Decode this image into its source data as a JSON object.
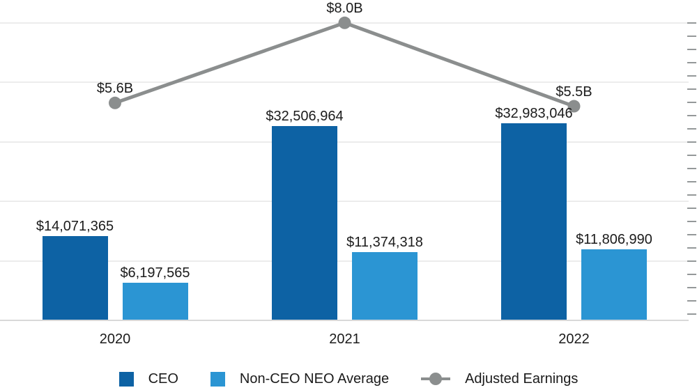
{
  "chart_data": {
    "type": "combo-bar-line",
    "categories": [
      "2020",
      "2021",
      "2022"
    ],
    "series": [
      {
        "name": "CEO",
        "type": "bar",
        "color": "#0D62A4",
        "values": [
          14071365,
          32506964,
          32983046
        ],
        "data_labels": [
          "$14,071,365",
          "$32,506,964",
          "$32,983,046"
        ]
      },
      {
        "name": "Non-CEO NEO Average",
        "type": "bar",
        "color": "#2B95D3",
        "values": [
          6197565,
          11374318,
          11806990
        ],
        "data_labels": [
          "$6,197,565",
          "$11,374,318",
          "$11,806,990"
        ]
      },
      {
        "name": "Adjusted Earnings",
        "type": "line",
        "color": "#8B8E8E",
        "values": [
          5.6,
          8.0,
          5.5
        ],
        "data_labels": [
          "$5.6B",
          "$8.0B",
          "$5.5B"
        ]
      }
    ],
    "title": "",
    "left_axis": {
      "min": 0,
      "max": 50000000,
      "gridline_step": 10000000,
      "labels_visible": false
    },
    "right_axis": {
      "minor_tick_count": 23,
      "labels_visible": false
    },
    "grid": true,
    "legend_position": "bottom"
  },
  "colors": {
    "background": "#FFFFFF",
    "gridline": "#ECECEC",
    "axis_line": "#D8D8D8",
    "right_tick": "#949899",
    "label_text": "#1B1B1B"
  }
}
